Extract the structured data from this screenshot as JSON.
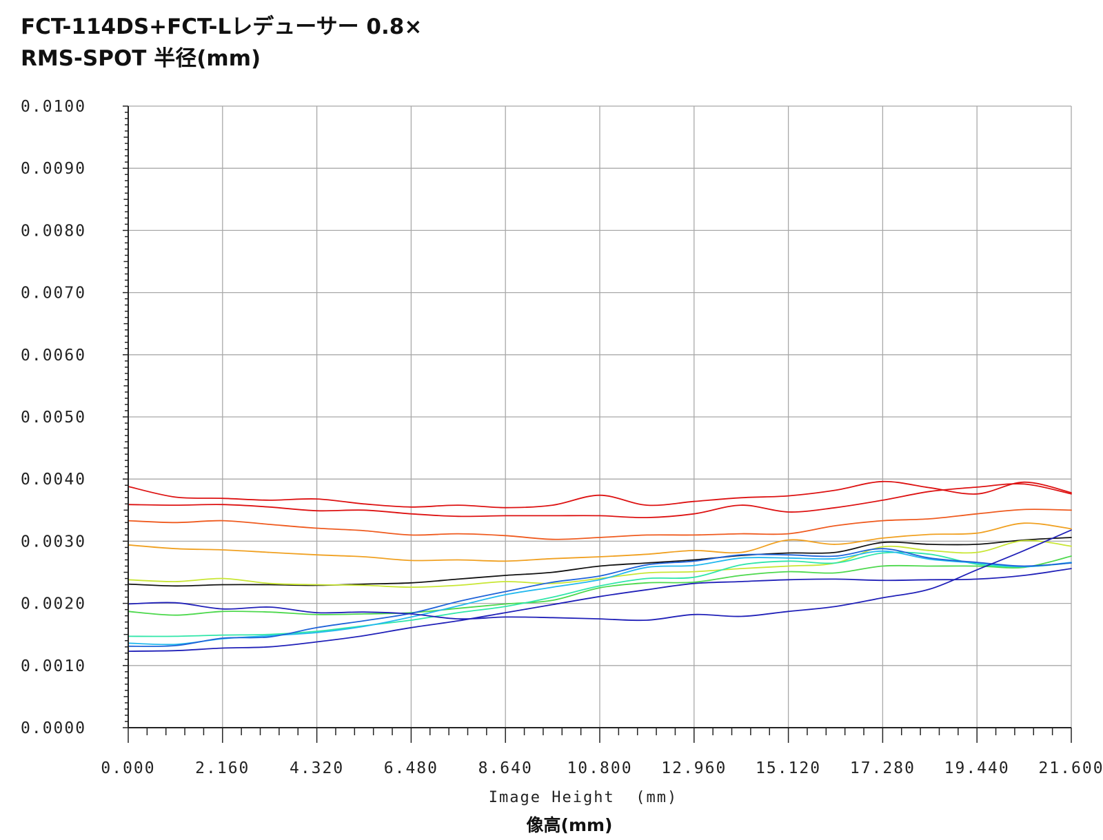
{
  "chart_data": {
    "type": "line",
    "title_lines": [
      "FCT-114DS+FCT-Lレデューサー 0.8×",
      "RMS-SPOT 半径(mm)"
    ],
    "xlabel": "Image Height  (mm)",
    "xlabel_jp": "像高(mm)",
    "ylabel": "",
    "xlim": [
      0,
      21.6
    ],
    "ylim": [
      0,
      0.01
    ],
    "x_ticks": [
      "0.000",
      "2.160",
      "4.320",
      "6.480",
      "8.640",
      "10.800",
      "12.960",
      "15.120",
      "17.280",
      "19.440",
      "21.600"
    ],
    "y_ticks": [
      "0.0000",
      "0.0010",
      "0.0020",
      "0.0030",
      "0.0040",
      "0.0050",
      "0.0060",
      "0.0070",
      "0.0080",
      "0.0090",
      "0.0100"
    ],
    "grid": true,
    "legend": "none",
    "x": [
      0,
      1.08,
      2.16,
      3.24,
      4.32,
      5.4,
      6.48,
      7.56,
      8.64,
      9.72,
      10.8,
      11.88,
      12.96,
      14.04,
      15.12,
      16.2,
      17.28,
      18.36,
      19.44,
      20.52,
      21.6
    ],
    "series": [
      {
        "color": "#dd1111",
        "values": [
          0.00388,
          0.00371,
          0.00369,
          0.00366,
          0.00368,
          0.0036,
          0.00355,
          0.00358,
          0.00354,
          0.00358,
          0.00374,
          0.00358,
          0.00364,
          0.0037,
          0.00373,
          0.00382,
          0.00396,
          0.00386,
          0.00376,
          0.00395,
          0.00378
        ]
      },
      {
        "color": "#dd1111",
        "values": [
          0.00359,
          0.00358,
          0.00359,
          0.00355,
          0.00349,
          0.0035,
          0.00344,
          0.0034,
          0.00341,
          0.00341,
          0.00341,
          0.00338,
          0.00344,
          0.00358,
          0.00347,
          0.00354,
          0.00366,
          0.0038,
          0.00387,
          0.00392,
          0.00376
        ]
      },
      {
        "color": "#ef5a1e",
        "values": [
          0.00333,
          0.0033,
          0.00333,
          0.00327,
          0.00321,
          0.00317,
          0.0031,
          0.00312,
          0.00309,
          0.00303,
          0.00306,
          0.0031,
          0.0031,
          0.00312,
          0.00312,
          0.00325,
          0.00333,
          0.00336,
          0.00344,
          0.00351,
          0.0035
        ]
      },
      {
        "color": "#f0a020",
        "values": [
          0.00294,
          0.00288,
          0.00286,
          0.00282,
          0.00278,
          0.00275,
          0.00269,
          0.0027,
          0.00268,
          0.00272,
          0.00275,
          0.00279,
          0.00285,
          0.00282,
          0.00302,
          0.00295,
          0.00305,
          0.00311,
          0.00313,
          0.00329,
          0.0032
        ]
      },
      {
        "color": "#111111",
        "values": [
          0.00231,
          0.00228,
          0.0023,
          0.0023,
          0.00229,
          0.00231,
          0.00233,
          0.00239,
          0.00245,
          0.0025,
          0.0026,
          0.00265,
          0.0027,
          0.00277,
          0.00281,
          0.00282,
          0.00298,
          0.00295,
          0.00295,
          0.00302,
          0.00306
        ]
      },
      {
        "color": "#c8e632",
        "values": [
          0.00238,
          0.00235,
          0.0024,
          0.00232,
          0.0023,
          0.00229,
          0.00226,
          0.00229,
          0.00235,
          0.00232,
          0.0024,
          0.00249,
          0.00251,
          0.00256,
          0.0026,
          0.00265,
          0.00291,
          0.00285,
          0.00282,
          0.00301,
          0.00292
        ]
      },
      {
        "color": "#4cd84c",
        "values": [
          0.00187,
          0.00181,
          0.00187,
          0.00186,
          0.00182,
          0.00183,
          0.00185,
          0.00192,
          0.00199,
          0.00205,
          0.00225,
          0.00233,
          0.00234,
          0.00245,
          0.00251,
          0.00249,
          0.0026,
          0.0026,
          0.0026,
          0.00258,
          0.00276
        ]
      },
      {
        "color": "#2ee6a8",
        "values": [
          0.00147,
          0.00147,
          0.00149,
          0.0015,
          0.00155,
          0.00164,
          0.00173,
          0.00185,
          0.00195,
          0.0021,
          0.00228,
          0.0024,
          0.00242,
          0.00262,
          0.00268,
          0.00265,
          0.00281,
          0.00279,
          0.00263,
          0.00259,
          0.00265
        ]
      },
      {
        "color": "#22b8ee",
        "values": [
          0.00136,
          0.00134,
          0.00143,
          0.00148,
          0.00153,
          0.00163,
          0.00178,
          0.00196,
          0.00214,
          0.00226,
          0.00238,
          0.00258,
          0.00261,
          0.00273,
          0.00273,
          0.00272,
          0.00284,
          0.00271,
          0.00265,
          0.00259,
          0.00266
        ]
      },
      {
        "color": "#1e62d8",
        "values": [
          0.00131,
          0.00132,
          0.00144,
          0.00146,
          0.00161,
          0.00172,
          0.00184,
          0.00203,
          0.00219,
          0.00234,
          0.00244,
          0.00262,
          0.00268,
          0.00278,
          0.00278,
          0.00276,
          0.00288,
          0.00273,
          0.00266,
          0.0026,
          0.00265
        ]
      },
      {
        "color": "#2020b8",
        "values": [
          0.00199,
          0.00201,
          0.00191,
          0.00194,
          0.00185,
          0.00186,
          0.00183,
          0.00175,
          0.00178,
          0.00177,
          0.00175,
          0.00173,
          0.00182,
          0.00179,
          0.00187,
          0.00195,
          0.00209,
          0.00223,
          0.00254,
          0.00285,
          0.00318
        ]
      },
      {
        "color": "#2020b8",
        "values": [
          0.00123,
          0.00124,
          0.00128,
          0.0013,
          0.00138,
          0.00148,
          0.00161,
          0.00172,
          0.00185,
          0.00198,
          0.00211,
          0.00222,
          0.00232,
          0.00235,
          0.00238,
          0.00239,
          0.00237,
          0.00238,
          0.00239,
          0.00245,
          0.00256
        ]
      }
    ]
  }
}
